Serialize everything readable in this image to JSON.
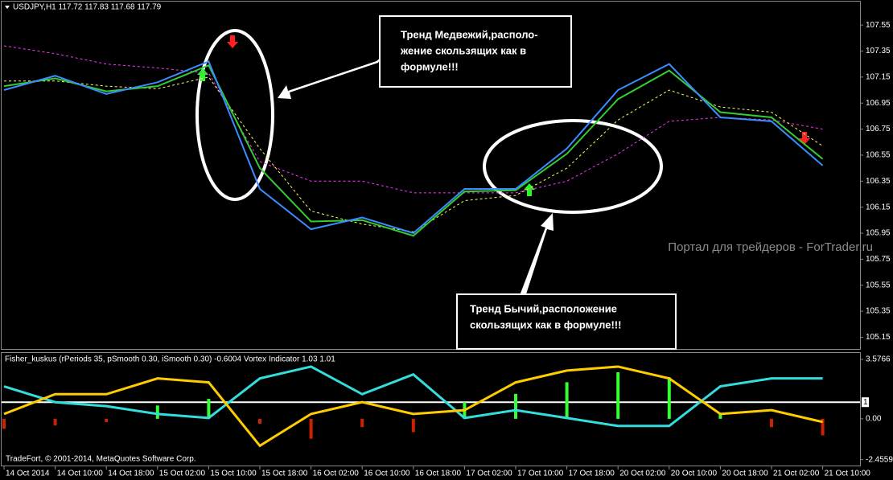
{
  "chart_data": [
    {
      "type": "line",
      "title": "USDJPY,H1  117.72 117.83 117.68 117.79",
      "categories": [
        "14 Oct 2014",
        "14 Oct 10:00",
        "14 Oct 18:00",
        "15 Oct 02:00",
        "15 Oct 10:00",
        "15 Oct 18:00",
        "16 Oct 02:00",
        "16 Oct 10:00",
        "16 Oct 18:00",
        "17 Oct 02:00",
        "17 Oct 10:00",
        "17 Oct 18:00",
        "20 Oct 02:00",
        "20 Oct 10:00",
        "20 Oct 18:00",
        "21 Oct 02:00",
        "21 Oct 10:00"
      ],
      "series": [
        {
          "color": "#ff33ff",
          "style": "dashed",
          "values": [
            107.39,
            107.33,
            107.25,
            107.22,
            107.18,
            106.5,
            106.35,
            106.35,
            106.26,
            106.26,
            106.26,
            106.35,
            106.56,
            106.81,
            106.84,
            106.82,
            106.75
          ]
        },
        {
          "color": "#ffff66",
          "style": "dashed",
          "values": [
            107.12,
            107.12,
            107.08,
            107.06,
            107.15,
            106.6,
            106.12,
            106.02,
            105.96,
            106.2,
            106.24,
            106.45,
            106.82,
            107.05,
            106.92,
            106.88,
            106.62
          ]
        },
        {
          "color": "#33cc33",
          "style": "solid",
          "values": [
            107.08,
            107.14,
            107.04,
            107.08,
            107.24,
            106.45,
            106.04,
            106.05,
            105.93,
            106.27,
            106.28,
            106.56,
            106.98,
            107.2,
            106.88,
            106.84,
            106.52
          ]
        },
        {
          "color": "#3a8cff",
          "style": "solid",
          "values": [
            107.05,
            107.16,
            107.02,
            107.11,
            107.27,
            106.29,
            105.98,
            106.07,
            105.95,
            106.29,
            106.29,
            106.6,
            107.05,
            107.25,
            106.84,
            106.81,
            106.47
          ]
        }
      ],
      "ylim": [
        105.06,
        107.73
      ],
      "yticks": [
        107.55,
        107.35,
        107.15,
        106.95,
        106.75,
        106.55,
        106.35,
        106.15,
        105.95,
        105.75,
        105.55,
        105.35,
        105.15
      ],
      "annotations": [
        [
          "Тренд Медвежий,располо-",
          "жение скользящих как в",
          "формуле!!!"
        ],
        [
          "Тренд Бычий,расположение",
          "скользящих как в формуле!!!"
        ]
      ],
      "watermark": "Портал для трейдеров - ForTrader.ru"
    },
    {
      "type": "combo",
      "title": "Fisher_kuskus (rPeriods 35, pSmooth 0.30, iSmooth 0.30)  -0.6004  Vortex Indicator 1.03 1.01",
      "series": [
        {
          "kind": "bar",
          "color": "#33ff33",
          "negative_color": "#cc2200",
          "values": [
            -0.6,
            -0.4,
            -0.2,
            0.8,
            1.2,
            -0.3,
            -1.2,
            -0.5,
            -0.8,
            1.0,
            1.5,
            2.2,
            2.8,
            2.5,
            0.3,
            -0.5,
            -1.0
          ]
        },
        {
          "kind": "line",
          "color": "#33dddd",
          "values": [
            1.95,
            1.0,
            0.76,
            0.29,
            0.05,
            2.43,
            3.14,
            1.48,
            2.67,
            0.05,
            0.52,
            0.05,
            -0.43,
            -0.43,
            1.95,
            2.43,
            2.43
          ]
        },
        {
          "kind": "line",
          "color": "#ffcc00",
          "values": [
            0.29,
            1.48,
            1.48,
            2.43,
            2.19,
            -1.62,
            0.29,
            1.0,
            0.29,
            0.52,
            2.19,
            2.9,
            3.14,
            2.43,
            0.29,
            0.52,
            -0.19
          ]
        }
      ],
      "level": 1,
      "ylim": [
        -2.81,
        3.96
      ],
      "yticks": [
        3.5766,
        {
          "value": 0,
          "label": "0.00"
        },
        -2.4559
      ],
      "footer": "TradeFort, © 2001-2014, MetaQuotes Software Corp."
    }
  ]
}
